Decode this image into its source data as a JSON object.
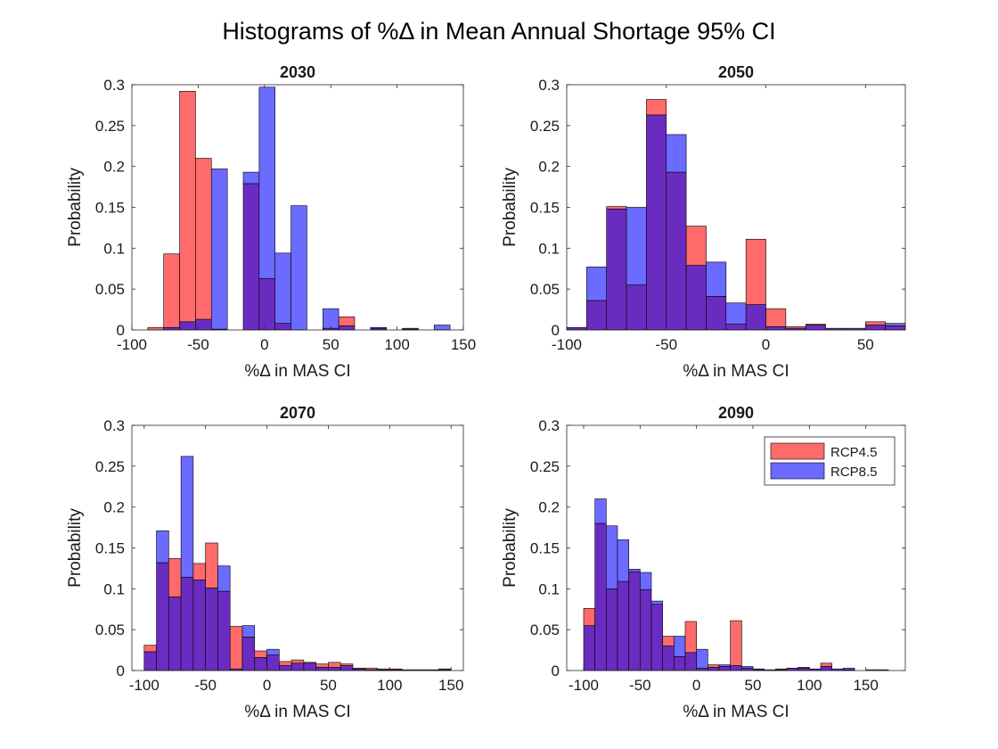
{
  "figure": {
    "title": "Histograms of %Δ in Mean Annual Shortage 95% CI"
  },
  "colors": {
    "rcp45": "#ff6a6a",
    "rcp85": "#6b6bff",
    "overlap": "#6a2cc0",
    "edge": "#000000",
    "axis": "#262626"
  },
  "legend": {
    "placement": "top-right of 2090 panel",
    "entries": [
      "RCP4.5",
      "RCP8.5"
    ]
  },
  "chart_data": [
    {
      "type": "bar",
      "title": "2030",
      "xlabel": "%Δ in MAS CI",
      "ylabel": "Probability",
      "xlim": [
        -100,
        150
      ],
      "ylim": [
        0,
        0.3
      ],
      "xticks": [
        -100,
        -50,
        0,
        50,
        100,
        150
      ],
      "yticks": [
        0,
        0.05,
        0.1,
        0.15,
        0.2,
        0.25,
        0.3
      ],
      "bin_width": 12,
      "bin_starts": [
        -88,
        -76,
        -64,
        -52,
        -40,
        -28,
        -16,
        -4,
        8,
        20,
        32,
        44,
        56,
        68,
        80,
        92,
        104,
        116,
        128
      ],
      "series": [
        {
          "name": "RCP4.5",
          "values": [
            0.003,
            0.093,
            0.292,
            0.21,
            0.001,
            0,
            0.179,
            0.063,
            0.008,
            0,
            0,
            0.002,
            0.016,
            0,
            0.002,
            0,
            0.001,
            0,
            0
          ]
        },
        {
          "name": "RCP8.5",
          "values": [
            0,
            0.003,
            0.01,
            0.013,
            0.197,
            0,
            0.193,
            0.297,
            0.094,
            0.152,
            0,
            0.026,
            0.005,
            0,
            0.003,
            0,
            0.002,
            0,
            0.006
          ]
        }
      ]
    },
    {
      "type": "bar",
      "title": "2050",
      "xlabel": "%Δ in MAS CI",
      "ylabel": "Probability",
      "xlim": [
        -100,
        70
      ],
      "ylim": [
        0,
        0.3
      ],
      "xticks": [
        -100,
        -50,
        0,
        50
      ],
      "yticks": [
        0,
        0.05,
        0.1,
        0.15,
        0.2,
        0.25,
        0.3
      ],
      "bin_width": 10,
      "bin_starts": [
        -100,
        -90,
        -80,
        -70,
        -60,
        -50,
        -40,
        -30,
        -20,
        -10,
        0,
        10,
        20,
        30,
        40,
        50,
        60
      ],
      "series": [
        {
          "name": "RCP4.5",
          "values": [
            0.003,
            0.036,
            0.151,
            0.055,
            0.282,
            0.193,
            0.127,
            0.041,
            0.007,
            0.111,
            0.026,
            0.004,
            0.007,
            0.002,
            0.002,
            0.01,
            0.005
          ]
        },
        {
          "name": "RCP8.5",
          "values": [
            0.003,
            0.077,
            0.148,
            0.15,
            0.263,
            0.239,
            0.079,
            0.083,
            0.033,
            0.031,
            0.004,
            0.002,
            0.006,
            0.002,
            0.002,
            0.006,
            0.008
          ]
        }
      ]
    },
    {
      "type": "bar",
      "title": "2070",
      "xlabel": "%Δ in MAS CI",
      "ylabel": "Probability",
      "xlim": [
        -110,
        160
      ],
      "ylim": [
        0,
        0.3
      ],
      "xticks": [
        -100,
        -50,
        0,
        50,
        100,
        150
      ],
      "yticks": [
        0,
        0.05,
        0.1,
        0.15,
        0.2,
        0.25,
        0.3
      ],
      "bin_width": 10,
      "bin_starts": [
        -100,
        -90,
        -80,
        -70,
        -60,
        -50,
        -40,
        -30,
        -20,
        -10,
        0,
        10,
        20,
        30,
        40,
        50,
        60,
        70,
        80,
        90,
        100,
        110,
        120,
        130,
        140
      ],
      "series": [
        {
          "name": "RCP4.5",
          "values": [
            0.031,
            0.132,
            0.137,
            0.114,
            0.131,
            0.156,
            0.097,
            0.054,
            0.041,
            0.024,
            0.019,
            0.011,
            0.013,
            0.01,
            0.008,
            0.01,
            0.008,
            0.003,
            0.003,
            0.002,
            0.002,
            0.001,
            0.001,
            0.001,
            0.001
          ]
        },
        {
          "name": "RCP8.5",
          "values": [
            0.023,
            0.171,
            0.09,
            0.262,
            0.111,
            0.101,
            0.128,
            0.002,
            0.055,
            0.016,
            0.026,
            0.006,
            0.009,
            0.009,
            0.004,
            0.004,
            0.006,
            0.002,
            0.001,
            0.001,
            0.001,
            0.001,
            0.001,
            0.001,
            0.002
          ]
        }
      ]
    },
    {
      "type": "bar",
      "title": "2090",
      "xlabel": "%Δ in MAS CI",
      "ylabel": "Probability",
      "xlim": [
        -115,
        185
      ],
      "ylim": [
        0,
        0.3
      ],
      "xticks": [
        -100,
        -50,
        0,
        50,
        100,
        150
      ],
      "yticks": [
        0,
        0.05,
        0.1,
        0.15,
        0.2,
        0.25,
        0.3
      ],
      "bin_width": 10,
      "bin_starts": [
        -100,
        -90,
        -80,
        -70,
        -60,
        -50,
        -40,
        -30,
        -20,
        -10,
        0,
        10,
        20,
        30,
        40,
        50,
        60,
        70,
        80,
        90,
        100,
        110,
        120,
        130,
        140,
        150,
        160
      ],
      "series": [
        {
          "name": "RCP4.5",
          "values": [
            0.076,
            0.18,
            0.1,
            0.109,
            0.121,
            0.099,
            0.081,
            0.042,
            0.017,
            0.06,
            0.003,
            0.007,
            0.005,
            0.061,
            0.003,
            0.001,
            0.001,
            0.002,
            0.003,
            0.004,
            0.002,
            0.009,
            0.002,
            0.001,
            0,
            0.001,
            0.001
          ]
        },
        {
          "name": "RCP8.5",
          "values": [
            0.055,
            0.21,
            0.177,
            0.16,
            0.124,
            0.12,
            0.085,
            0.03,
            0.042,
            0.022,
            0.026,
            0.004,
            0.007,
            0.006,
            0.005,
            0.002,
            0.001,
            0.001,
            0.003,
            0.003,
            0.002,
            0.005,
            0.002,
            0.003,
            0,
            0,
            0.001
          ]
        }
      ]
    }
  ]
}
